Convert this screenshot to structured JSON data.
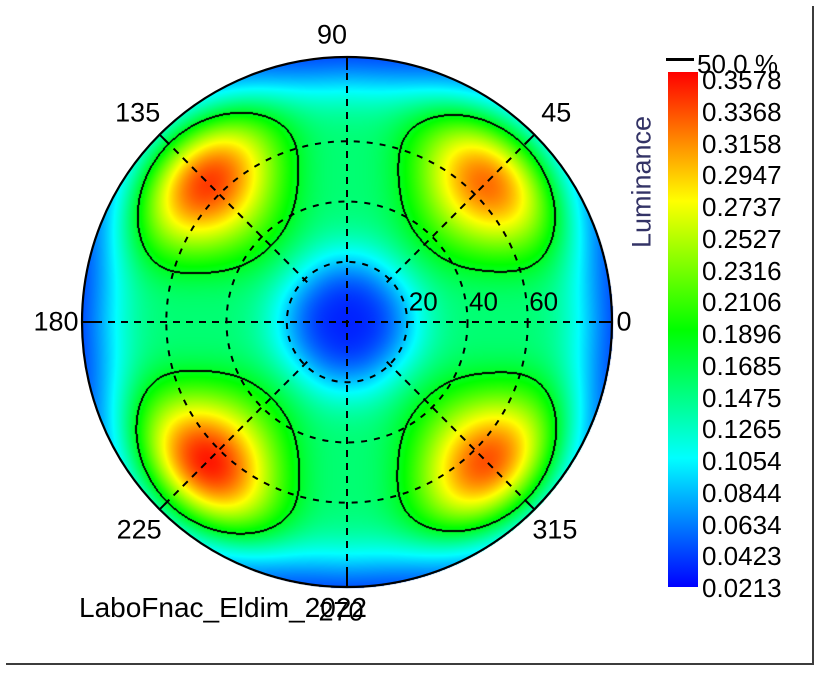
{
  "chart_data": {
    "type": "heatmap",
    "subtype": "polar-conoscopic-viewing-angle",
    "title": "LaboFnac_Eldim_2022",
    "angle_tick_labels": [
      "0",
      "45",
      "90",
      "135",
      "180",
      "225",
      "270",
      "315"
    ],
    "radial_grid_deg": [
      20,
      40,
      60
    ],
    "radial_tick_labels": [
      "20",
      "40",
      "60"
    ],
    "max_inclination_deg": 88,
    "azimuth_grid_lines_deg": [
      0,
      45,
      90,
      135
    ],
    "grid_style": "dashed",
    "colorbar": {
      "title": "Luminance",
      "vmin": 0.0213,
      "vmax": 0.3578,
      "tick_labels": [
        "0.3578",
        "0.3368",
        "0.3158",
        "0.2947",
        "0.2737",
        "0.2527",
        "0.2316",
        "0.2106",
        "0.1896",
        "0.1685",
        "0.1475",
        "0.1265",
        "0.1054",
        "0.0844",
        "0.0634",
        "0.0423",
        "0.0213"
      ],
      "contour_marker_label": "50.0 %"
    },
    "contour_fraction_of_max": 0.5,
    "field_model": {
      "base_min": 0.032,
      "base_amplitude": 0.12,
      "base_center_deg": 50,
      "base_width_deg": 32,
      "lobe_amplitude": 0.19,
      "lobe_center_deg": 67,
      "lobe_radial_sigma_deg": 23,
      "lobe_azimuths_deg": [
        45,
        135,
        225,
        315
      ],
      "lobe_strengths": [
        0.93,
        1.02,
        1.08,
        0.98
      ],
      "azimuth_power": 3
    },
    "palette": "hue-ramp-blue-to-red",
    "colors": {
      "text": "#000000",
      "colorbar_title_text": "#333366",
      "grid": "#000000",
      "contour": "#000000",
      "background": "#ffffff"
    }
  }
}
